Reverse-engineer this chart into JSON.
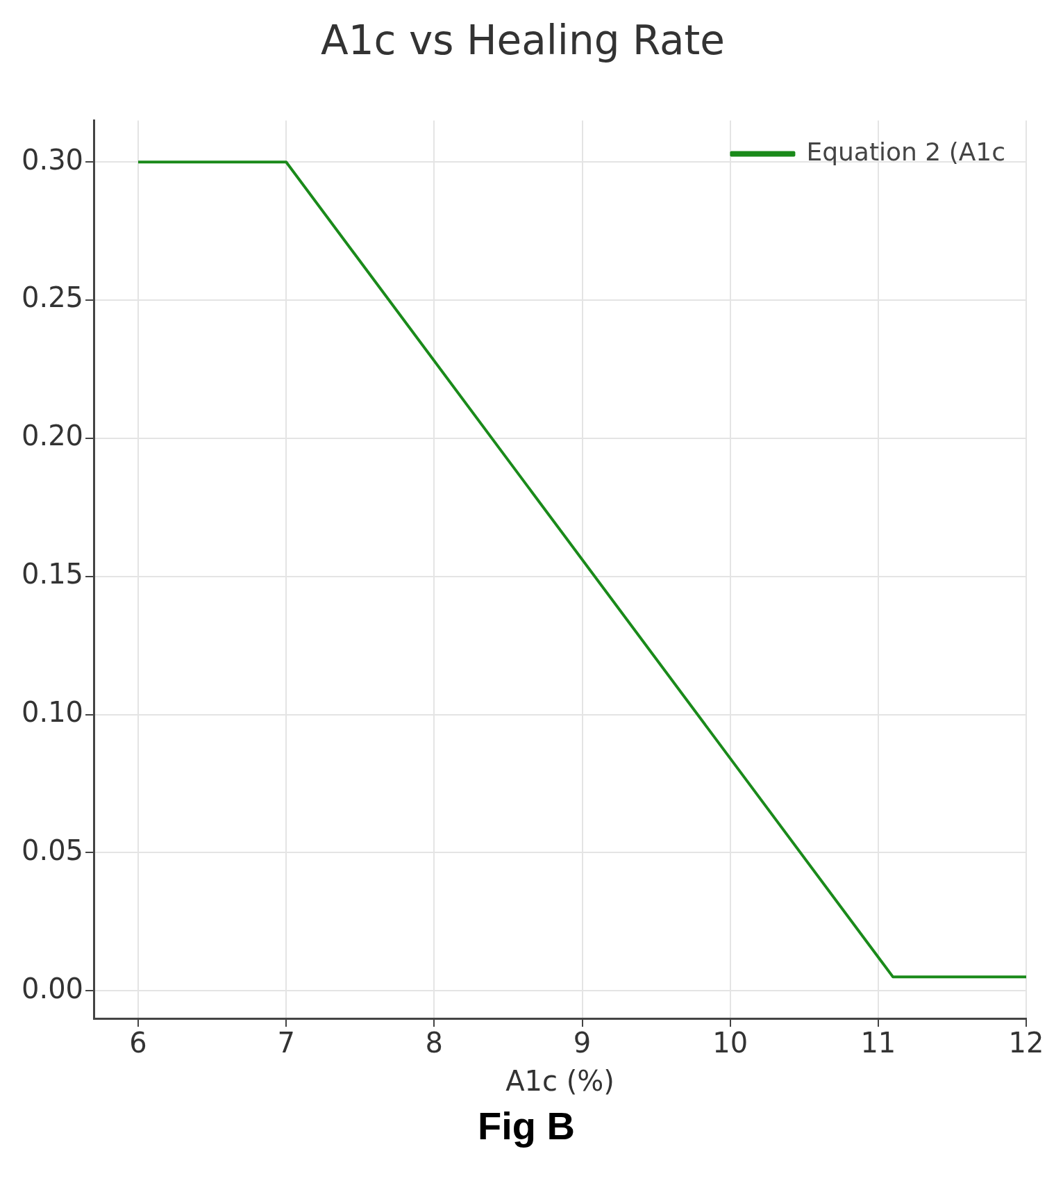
{
  "chart_data": {
    "type": "line",
    "title": "A1c vs Healing Rate",
    "xlabel": "A1c (%)",
    "annotations": [
      "Fig B"
    ],
    "x": [
      6,
      7,
      11.1,
      12
    ],
    "series": [
      {
        "name": "Equation 2 (A1c",
        "color": "#1a8a1a",
        "values": [
          0.3,
          0.3,
          0.005,
          0.005
        ]
      }
    ],
    "xlim": [
      5.7,
      12
    ],
    "xticks": [
      6,
      7,
      8,
      9,
      10,
      11,
      12
    ],
    "ylim": [
      -0.01,
      0.315
    ],
    "yticks": [
      {
        "value": 0,
        "label": "0.00"
      },
      {
        "value": 0.05,
        "label": "0.05"
      },
      {
        "value": 0.1,
        "label": "0.10"
      },
      {
        "value": 0.15,
        "label": "0.15"
      },
      {
        "value": 0.2,
        "label": "0.20"
      },
      {
        "value": 0.25,
        "label": "0.25"
      },
      {
        "value": 0.3,
        "label": "0.30"
      }
    ],
    "grid": true,
    "legend": "top right",
    "marker": "none",
    "line_style": "solid"
  }
}
